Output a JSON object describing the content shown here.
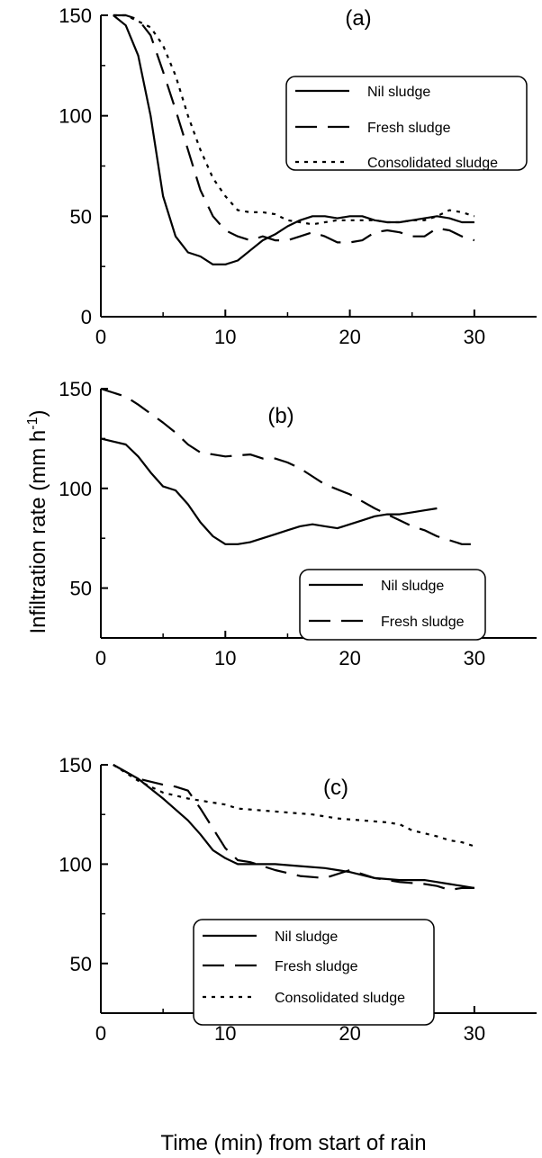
{
  "figure": {
    "ylabel_main": "Infiltration rate (mm h",
    "ylabel_sup": "-1",
    "ylabel_close": ")",
    "xlabel": "Time (min) from start of rain"
  },
  "chart_data": [
    {
      "type": "line",
      "label": "(a)",
      "xlim": [
        0,
        35
      ],
      "ylim": [
        0,
        150
      ],
      "xticks": [
        0,
        10,
        20,
        30
      ],
      "yticks": [
        0,
        50,
        100,
        150
      ],
      "legend_position": "upper-right",
      "series": [
        {
          "name": "Nil sludge",
          "style": "solid",
          "points": [
            [
              1,
              150
            ],
            [
              2,
              145
            ],
            [
              3,
              130
            ],
            [
              4,
              100
            ],
            [
              5,
              60
            ],
            [
              6,
              40
            ],
            [
              7,
              32
            ],
            [
              8,
              30
            ],
            [
              9,
              26
            ],
            [
              10,
              26
            ],
            [
              11,
              28
            ],
            [
              12,
              33
            ],
            [
              13,
              38
            ],
            [
              14,
              41
            ],
            [
              15,
              45
            ],
            [
              16,
              48
            ],
            [
              17,
              50
            ],
            [
              18,
              50
            ],
            [
              19,
              49
            ],
            [
              20,
              50
            ],
            [
              21,
              50
            ],
            [
              22,
              48
            ],
            [
              23,
              47
            ],
            [
              24,
              47
            ],
            [
              25,
              48
            ],
            [
              26,
              49
            ],
            [
              27,
              50
            ],
            [
              28,
              49
            ],
            [
              29,
              47
            ],
            [
              30,
              47
            ]
          ]
        },
        {
          "name": "Fresh sludge",
          "style": "dashed",
          "points": [
            [
              1,
              150
            ],
            [
              2,
              150
            ],
            [
              3,
              148
            ],
            [
              4,
              140
            ],
            [
              5,
              122
            ],
            [
              6,
              103
            ],
            [
              7,
              83
            ],
            [
              8,
              63
            ],
            [
              9,
              50
            ],
            [
              10,
              43
            ],
            [
              11,
              40
            ],
            [
              12,
              38
            ],
            [
              13,
              40
            ],
            [
              14,
              38
            ],
            [
              15,
              38
            ],
            [
              16,
              40
            ],
            [
              17,
              42
            ],
            [
              18,
              40
            ],
            [
              19,
              37
            ],
            [
              20,
              37
            ],
            [
              21,
              38
            ],
            [
              22,
              42
            ],
            [
              23,
              43
            ],
            [
              24,
              42
            ],
            [
              25,
              40
            ],
            [
              26,
              40
            ],
            [
              27,
              44
            ],
            [
              28,
              43
            ],
            [
              29,
              40
            ],
            [
              30,
              38
            ]
          ]
        },
        {
          "name": "Consolidated sludge",
          "style": "dotted",
          "points": [
            [
              1,
              150
            ],
            [
              2,
              150
            ],
            [
              3,
              147
            ],
            [
              4,
              144
            ],
            [
              5,
              135
            ],
            [
              6,
              120
            ],
            [
              7,
              100
            ],
            [
              8,
              83
            ],
            [
              9,
              69
            ],
            [
              10,
              60
            ],
            [
              11,
              53
            ],
            [
              12,
              52
            ],
            [
              13,
              52
            ],
            [
              14,
              51
            ],
            [
              15,
              48
            ],
            [
              16,
              47
            ],
            [
              17,
              46
            ],
            [
              18,
              47
            ],
            [
              19,
              48
            ],
            [
              20,
              48
            ],
            [
              21,
              48
            ],
            [
              22,
              48
            ],
            [
              23,
              47
            ],
            [
              24,
              47
            ],
            [
              25,
              48
            ],
            [
              26,
              48
            ],
            [
              27,
              50
            ],
            [
              28,
              53
            ],
            [
              29,
              52
            ],
            [
              30,
              50
            ]
          ]
        }
      ]
    },
    {
      "type": "line",
      "label": "(b)",
      "xlim": [
        0,
        35
      ],
      "ylim": [
        25,
        150
      ],
      "xticks": [
        0,
        10,
        20,
        30
      ],
      "yticks": [
        50,
        100,
        150
      ],
      "legend_position": "lower-right",
      "series": [
        {
          "name": "Nil sludge",
          "style": "solid",
          "points": [
            [
              0,
              125
            ],
            [
              2,
              122
            ],
            [
              3,
              116
            ],
            [
              4,
              108
            ],
            [
              5,
              101
            ],
            [
              6,
              99
            ],
            [
              7,
              92
            ],
            [
              8,
              83
            ],
            [
              9,
              76
            ],
            [
              10,
              72
            ],
            [
              11,
              72
            ],
            [
              12,
              73
            ],
            [
              13,
              75
            ],
            [
              14,
              77
            ],
            [
              15,
              79
            ],
            [
              16,
              81
            ],
            [
              17,
              82
            ],
            [
              18,
              81
            ],
            [
              19,
              80
            ],
            [
              20,
              82
            ],
            [
              21,
              84
            ],
            [
              22,
              86
            ],
            [
              23,
              87
            ],
            [
              24,
              87
            ],
            [
              25,
              88
            ],
            [
              26,
              89
            ],
            [
              27,
              90
            ]
          ]
        },
        {
          "name": "Fresh sludge",
          "style": "dashed",
          "points": [
            [
              0,
              150
            ],
            [
              2,
              146
            ],
            [
              3,
              142
            ],
            [
              5,
              133
            ],
            [
              6,
              128
            ],
            [
              7,
              122
            ],
            [
              8,
              118
            ],
            [
              9,
              117
            ],
            [
              10,
              116
            ],
            [
              12,
              117
            ],
            [
              13,
              115
            ],
            [
              14,
              115
            ],
            [
              15,
              113
            ],
            [
              16,
              110
            ],
            [
              17,
              106
            ],
            [
              18,
              102
            ],
            [
              20,
              97
            ],
            [
              22,
              90
            ],
            [
              24,
              84
            ],
            [
              25,
              81
            ],
            [
              26,
              79
            ],
            [
              27,
              76
            ],
            [
              28,
              74
            ],
            [
              29,
              72
            ],
            [
              30,
              72
            ]
          ]
        }
      ]
    },
    {
      "type": "line",
      "label": "(c)",
      "xlim": [
        0,
        35
      ],
      "ylim": [
        25,
        150
      ],
      "xticks": [
        0,
        10,
        20,
        30
      ],
      "yticks": [
        50,
        100,
        150
      ],
      "legend_position": "lower-center",
      "series": [
        {
          "name": "Nil sludge",
          "style": "solid",
          "points": [
            [
              1,
              150
            ],
            [
              3,
              143
            ],
            [
              5,
              133
            ],
            [
              7,
              122
            ],
            [
              8,
              115
            ],
            [
              9,
              107
            ],
            [
              10,
              103
            ],
            [
              11,
              100
            ],
            [
              12,
              100
            ],
            [
              14,
              100
            ],
            [
              16,
              99
            ],
            [
              18,
              98
            ],
            [
              19,
              97
            ],
            [
              20,
              96
            ],
            [
              22,
              93
            ],
            [
              24,
              92
            ],
            [
              26,
              92
            ],
            [
              28,
              90
            ],
            [
              30,
              88
            ]
          ]
        },
        {
          "name": "Fresh sludge",
          "style": "dashed",
          "points": [
            [
              1,
              150
            ],
            [
              3,
              143
            ],
            [
              5,
              140
            ],
            [
              6,
              139
            ],
            [
              7,
              137
            ],
            [
              8,
              128
            ],
            [
              9,
              118
            ],
            [
              10,
              108
            ],
            [
              11,
              102
            ],
            [
              12,
              101
            ],
            [
              14,
              97
            ],
            [
              16,
              94
            ],
            [
              18,
              93
            ],
            [
              20,
              97
            ],
            [
              22,
              93
            ],
            [
              24,
              91
            ],
            [
              26,
              90
            ],
            [
              27,
              89
            ],
            [
              28,
              87
            ],
            [
              29,
              88
            ],
            [
              30,
              88
            ]
          ]
        },
        {
          "name": "Consolidated sludge",
          "style": "dotted",
          "points": [
            [
              1,
              150
            ],
            [
              3,
              142
            ],
            [
              5,
              136
            ],
            [
              7,
              133
            ],
            [
              9,
              131
            ],
            [
              10,
              130
            ],
            [
              11,
              128
            ],
            [
              13,
              127
            ],
            [
              15,
              126
            ],
            [
              17,
              125
            ],
            [
              19,
              123
            ],
            [
              21,
              122
            ],
            [
              23,
              121
            ],
            [
              24,
              120
            ],
            [
              25,
              117
            ],
            [
              27,
              114
            ],
            [
              28,
              112
            ],
            [
              29,
              111
            ],
            [
              30,
              109
            ]
          ]
        }
      ]
    }
  ]
}
